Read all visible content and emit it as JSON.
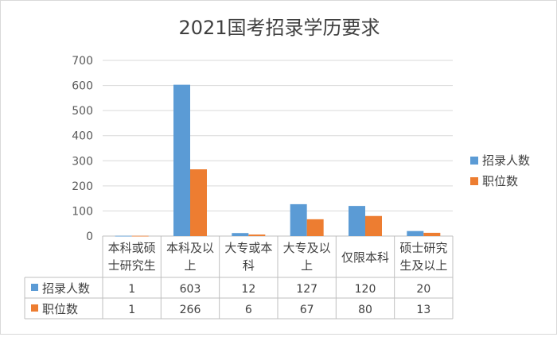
{
  "chart_data": {
    "type": "bar",
    "title": "2021国考招录学历要求",
    "categories": [
      [
        "本科或硕",
        "士研究生"
      ],
      [
        "本科及以",
        "上"
      ],
      [
        "大专或本",
        "科"
      ],
      [
        "大专及以",
        "上"
      ],
      [
        "仅限本科"
      ],
      [
        "硕士研究",
        "生及以上"
      ]
    ],
    "series": [
      {
        "name": "招录人数",
        "color": "#5b9bd5",
        "values": [
          1,
          603,
          12,
          127,
          120,
          20
        ]
      },
      {
        "name": "职位数",
        "color": "#ed7d31",
        "values": [
          1,
          266,
          6,
          67,
          80,
          13
        ]
      }
    ],
    "ylim": [
      0,
      700
    ],
    "yticks": [
      0,
      100,
      200,
      300,
      400,
      500,
      600,
      700
    ],
    "grid": true,
    "legend": "right",
    "data_table": true
  }
}
